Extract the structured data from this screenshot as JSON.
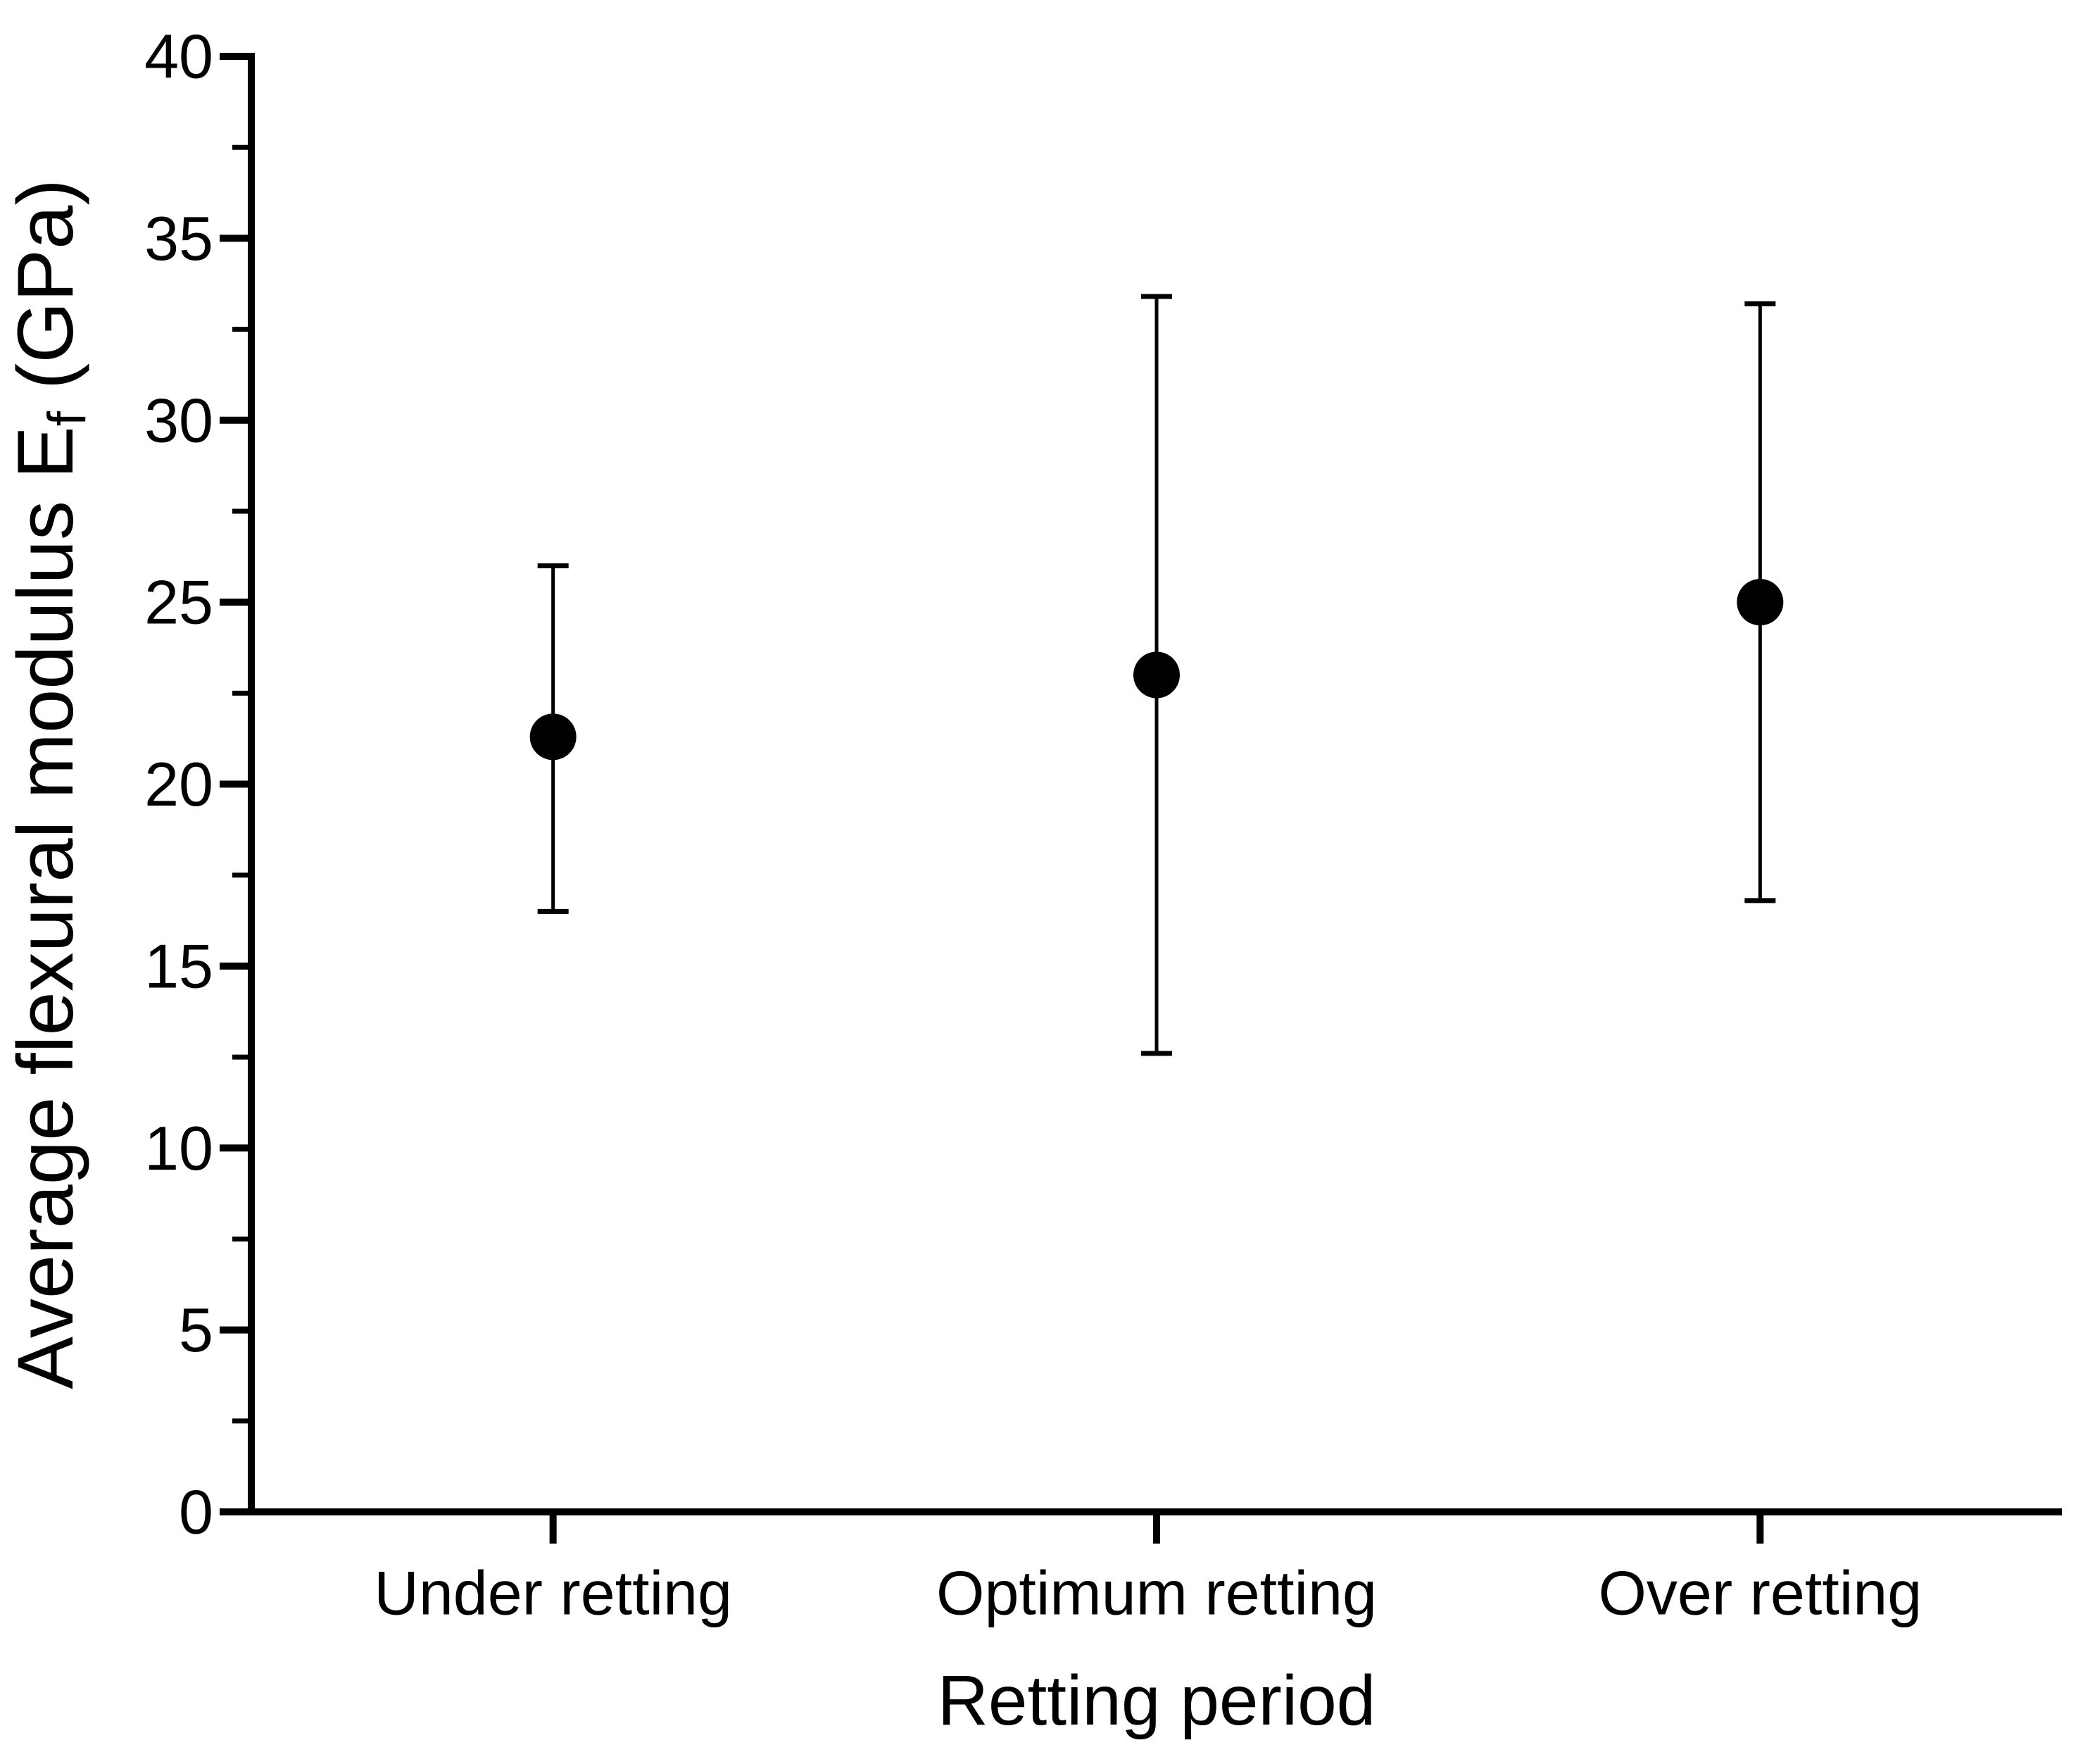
{
  "figure": {
    "background_color": "#ffffff",
    "ink_color": "#000000"
  },
  "chart_data": {
    "type": "scatter",
    "title": "",
    "xlabel": "Retting period",
    "ylabel": "Average flexural modulus Ef (GPa)",
    "ylabel_parts": {
      "prefix": "Average flexural modulus E",
      "subscript": "f",
      "suffix": " (GPa)"
    },
    "categories": [
      "Under retting",
      "Optimum retting",
      "Over retting"
    ],
    "series": [
      {
        "name": "Average flexural modulus",
        "marker": "filled-circle",
        "color": "#000000",
        "values": [
          21.3,
          23.0,
          25.0
        ],
        "error_upper": [
          26.0,
          33.4,
          33.2
        ],
        "error_lower": [
          16.5,
          12.6,
          16.8
        ]
      }
    ],
    "ylim": [
      0,
      40
    ],
    "y_major_ticks": [
      0,
      5,
      10,
      15,
      20,
      25,
      30,
      35,
      40
    ],
    "y_minor_ticks": [
      2.5,
      7.5,
      12.5,
      17.5,
      22.5,
      27.5,
      32.5,
      37.5
    ],
    "grid": false,
    "legend": false
  }
}
